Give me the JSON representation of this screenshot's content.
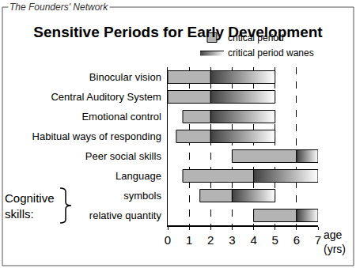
{
  "chart_data": {
    "type": "bar",
    "orientation": "horizontal",
    "title": "Sensitive Periods for Early Development",
    "source": "The Founders' Network",
    "xlabel": "age (yrs)",
    "categories": [
      "Binocular vision",
      "Central Auditory System",
      "Emotional control",
      "Habitual ways of responding",
      "Peer social skills",
      "Language",
      "symbols",
      "relative quantity"
    ],
    "series": [
      {
        "name": "critical period",
        "color": "#b4b4b4",
        "start": [
          0,
          0,
          0.7,
          0.4,
          3,
          0.7,
          1.5,
          4
        ],
        "end": [
          2,
          2,
          2,
          2,
          6,
          4,
          3,
          6
        ]
      },
      {
        "name": "critical period wanes",
        "color": "#404040",
        "start": [
          2,
          2,
          2,
          2,
          6,
          4,
          3,
          6
        ],
        "end": [
          5,
          5,
          5,
          5,
          7,
          7,
          5,
          7
        ]
      }
    ],
    "xlim": [
      0,
      7
    ],
    "xticks": [
      0,
      1,
      2,
      3,
      4,
      5,
      6,
      7
    ],
    "grid": true,
    "legend": "top right",
    "annotations": [
      {
        "text": "Cognitive skills:",
        "categories": [
          "symbols",
          "relative quantity"
        ]
      }
    ]
  }
}
